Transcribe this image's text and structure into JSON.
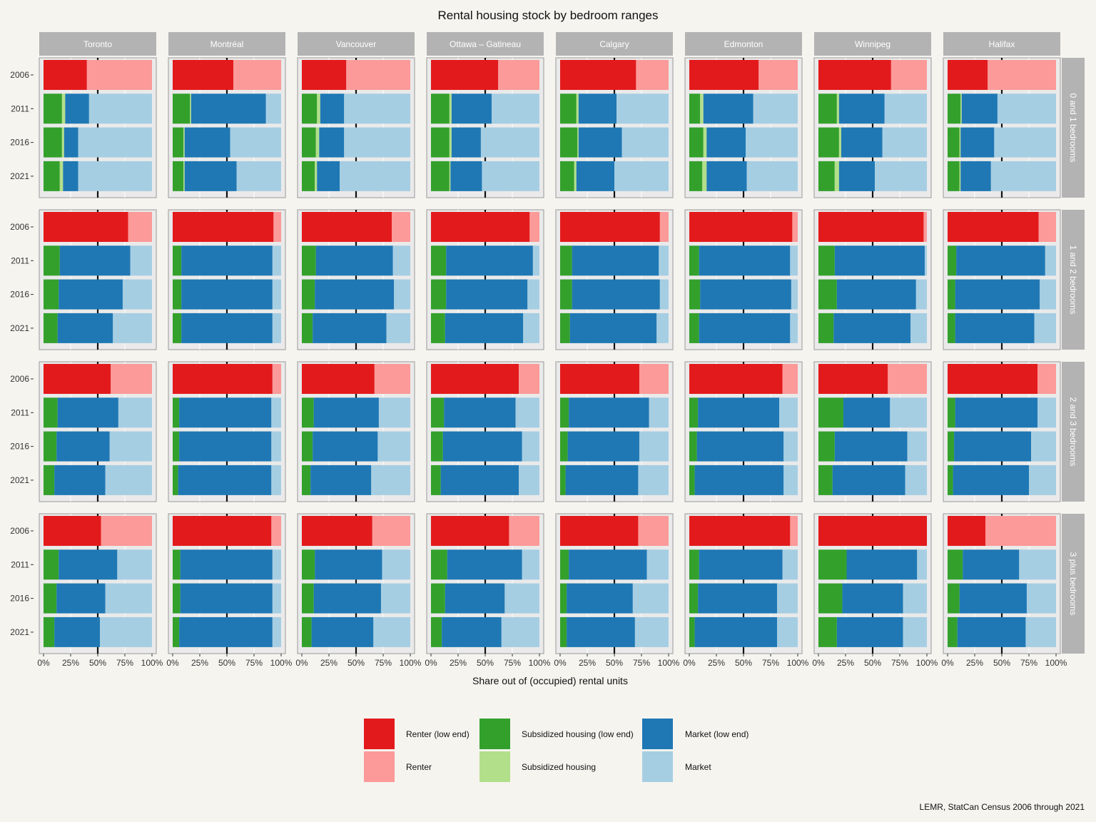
{
  "chart_data": {
    "type": "bar",
    "orientation": "horizontal-stacked",
    "title": "Rental housing stock by bedroom ranges",
    "xlabel": "Share out of (occupied) rental units",
    "ylabel": "",
    "caption": "LEMR, StatCan Census 2006 through 2021",
    "xlim": [
      0,
      1
    ],
    "x_ticks": [
      "0%",
      "25%",
      "50%",
      "75%",
      "100%"
    ],
    "years": [
      "2006",
      "2011",
      "2016",
      "2021"
    ],
    "columns": [
      "Toronto",
      "Montréal",
      "Vancouver",
      "Ottawa – Gatineau",
      "Calgary",
      "Edmonton",
      "Winnipeg",
      "Halifax"
    ],
    "rows": [
      "0 and 1 bedrooms",
      "1 and 2 bedrooms",
      "2 and 3 bedrooms",
      "3 plus bedrooms"
    ],
    "categories": [
      {
        "name": "Renter (low end)",
        "color": "#e31a1c"
      },
      {
        "name": "Renter",
        "color": "#fb9a99"
      },
      {
        "name": "Subsidized housing (low end)",
        "color": "#33a02c"
      },
      {
        "name": "Subsidized housing",
        "color": "#b2df8a"
      },
      {
        "name": "Market (low end)",
        "color": "#1f78b4"
      },
      {
        "name": "Market",
        "color": "#a6cee3"
      }
    ],
    "values_note": "values[row][column][year] = cumulative boundaries (fractions) of stacked segments; 2006: [renter_low_end]; 2011+: [subsidized_low_end, subsidized, market_low_end]",
    "values": [
      [
        [
          [
            0.4
          ],
          [
            0.17,
            0.2,
            0.42
          ],
          [
            0.17,
            0.19,
            0.32
          ],
          [
            0.15,
            0.18,
            0.32
          ]
        ],
        [
          [
            0.56
          ],
          [
            0.16,
            0.17,
            0.86
          ],
          [
            0.1,
            0.11,
            0.53
          ],
          [
            0.1,
            0.11,
            0.59
          ]
        ],
        [
          [
            0.41
          ],
          [
            0.14,
            0.17,
            0.39
          ],
          [
            0.13,
            0.16,
            0.39
          ],
          [
            0.12,
            0.14,
            0.35
          ]
        ],
        [
          [
            0.62
          ],
          [
            0.17,
            0.19,
            0.56
          ],
          [
            0.17,
            0.19,
            0.46
          ],
          [
            0.17,
            0.18,
            0.47
          ]
        ],
        [
          [
            0.7
          ],
          [
            0.15,
            0.17,
            0.52
          ],
          [
            0.16,
            0.17,
            0.57
          ],
          [
            0.13,
            0.15,
            0.5
          ]
        ],
        [
          [
            0.64
          ],
          [
            0.1,
            0.13,
            0.59
          ],
          [
            0.13,
            0.16,
            0.52
          ],
          [
            0.12,
            0.16,
            0.53
          ]
        ],
        [
          [
            0.67
          ],
          [
            0.17,
            0.19,
            0.61
          ],
          [
            0.19,
            0.21,
            0.59
          ],
          [
            0.15,
            0.19,
            0.52
          ]
        ],
        [
          [
            0.37
          ],
          [
            0.12,
            0.13,
            0.46
          ],
          [
            0.11,
            0.12,
            0.43
          ],
          [
            0.11,
            0.12,
            0.4
          ]
        ]
      ],
      [
        [
          [
            0.78
          ],
          [
            0.15,
            0.15,
            0.8
          ],
          [
            0.14,
            0.14,
            0.73
          ],
          [
            0.13,
            0.13,
            0.64
          ]
        ],
        [
          [
            0.93
          ],
          [
            0.08,
            0.08,
            0.92
          ],
          [
            0.08,
            0.08,
            0.92
          ],
          [
            0.08,
            0.08,
            0.92
          ]
        ],
        [
          [
            0.83
          ],
          [
            0.13,
            0.13,
            0.84
          ],
          [
            0.12,
            0.12,
            0.85
          ],
          [
            0.1,
            0.1,
            0.78
          ]
        ],
        [
          [
            0.91
          ],
          [
            0.14,
            0.14,
            0.94
          ],
          [
            0.14,
            0.14,
            0.89
          ],
          [
            0.13,
            0.13,
            0.85
          ]
        ],
        [
          [
            0.92
          ],
          [
            0.11,
            0.11,
            0.91
          ],
          [
            0.11,
            0.11,
            0.92
          ],
          [
            0.09,
            0.09,
            0.89
          ]
        ],
        [
          [
            0.95
          ],
          [
            0.09,
            0.09,
            0.93
          ],
          [
            0.1,
            0.1,
            0.94
          ],
          [
            0.09,
            0.09,
            0.93
          ]
        ],
        [
          [
            0.97
          ],
          [
            0.15,
            0.15,
            0.98
          ],
          [
            0.17,
            0.17,
            0.9
          ],
          [
            0.14,
            0.14,
            0.85
          ]
        ],
        [
          [
            0.84
          ],
          [
            0.08,
            0.08,
            0.9
          ],
          [
            0.07,
            0.07,
            0.85
          ],
          [
            0.07,
            0.07,
            0.8
          ]
        ]
      ],
      [
        [
          [
            0.62
          ],
          [
            0.13,
            0.13,
            0.69
          ],
          [
            0.12,
            0.12,
            0.61
          ],
          [
            0.1,
            0.1,
            0.57
          ]
        ],
        [
          [
            0.92
          ],
          [
            0.06,
            0.06,
            0.91
          ],
          [
            0.06,
            0.06,
            0.91
          ],
          [
            0.05,
            0.05,
            0.91
          ]
        ],
        [
          [
            0.67
          ],
          [
            0.11,
            0.11,
            0.71
          ],
          [
            0.1,
            0.1,
            0.7
          ],
          [
            0.08,
            0.08,
            0.64
          ]
        ],
        [
          [
            0.81
          ],
          [
            0.12,
            0.12,
            0.78
          ],
          [
            0.11,
            0.11,
            0.84
          ],
          [
            0.09,
            0.09,
            0.81
          ]
        ],
        [
          [
            0.73
          ],
          [
            0.08,
            0.08,
            0.82
          ],
          [
            0.07,
            0.07,
            0.73
          ],
          [
            0.05,
            0.05,
            0.72
          ]
        ],
        [
          [
            0.86
          ],
          [
            0.08,
            0.08,
            0.83
          ],
          [
            0.07,
            0.07,
            0.87
          ],
          [
            0.05,
            0.05,
            0.87
          ]
        ],
        [
          [
            0.64
          ],
          [
            0.23,
            0.23,
            0.66
          ],
          [
            0.15,
            0.15,
            0.82
          ],
          [
            0.13,
            0.13,
            0.8
          ]
        ],
        [
          [
            0.83
          ],
          [
            0.07,
            0.07,
            0.83
          ],
          [
            0.06,
            0.06,
            0.77
          ],
          [
            0.05,
            0.05,
            0.75
          ]
        ]
      ],
      [
        [
          [
            0.53
          ],
          [
            0.14,
            0.14,
            0.68
          ],
          [
            0.12,
            0.12,
            0.57
          ],
          [
            0.1,
            0.1,
            0.52
          ]
        ],
        [
          [
            0.91
          ],
          [
            0.07,
            0.07,
            0.92
          ],
          [
            0.07,
            0.07,
            0.92
          ],
          [
            0.06,
            0.06,
            0.92
          ]
        ],
        [
          [
            0.65
          ],
          [
            0.12,
            0.12,
            0.74
          ],
          [
            0.11,
            0.11,
            0.73
          ],
          [
            0.09,
            0.09,
            0.66
          ]
        ],
        [
          [
            0.72
          ],
          [
            0.15,
            0.15,
            0.84
          ],
          [
            0.13,
            0.13,
            0.68
          ],
          [
            0.1,
            0.1,
            0.65
          ]
        ],
        [
          [
            0.72
          ],
          [
            0.08,
            0.08,
            0.8
          ],
          [
            0.06,
            0.06,
            0.67
          ],
          [
            0.06,
            0.06,
            0.69
          ]
        ],
        [
          [
            0.93
          ],
          [
            0.09,
            0.09,
            0.86
          ],
          [
            0.08,
            0.08,
            0.81
          ],
          [
            0.05,
            0.05,
            0.81
          ]
        ],
        [
          [
            1.0
          ],
          [
            0.26,
            0.26,
            0.91
          ],
          [
            0.22,
            0.22,
            0.78
          ],
          [
            0.17,
            0.17,
            0.78
          ]
        ],
        [
          [
            0.35
          ],
          [
            0.14,
            0.14,
            0.66
          ],
          [
            0.11,
            0.11,
            0.73
          ],
          [
            0.09,
            0.09,
            0.72
          ]
        ]
      ]
    ]
  }
}
